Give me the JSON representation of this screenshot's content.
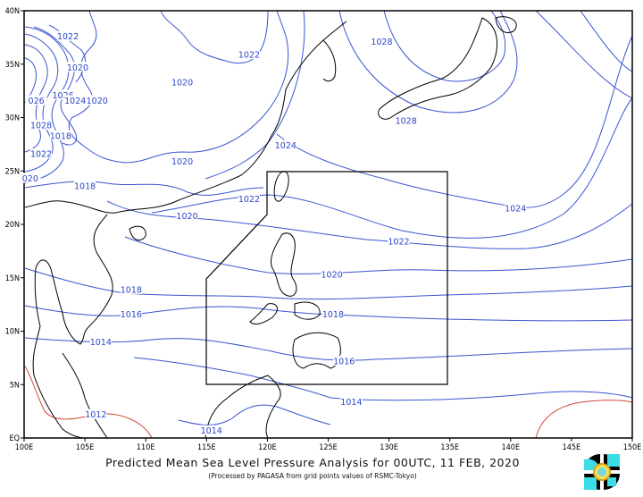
{
  "title": "Predicted Mean Sea Level Pressure Analysis for 00UTC, 11 FEB, 2020",
  "subtitle": "(Processed by PAGASA from grid points values of RSMC-Tokyo)",
  "logo": "PAGASA logo",
  "map": {
    "lon_range": [
      100,
      150
    ],
    "lat_range": [
      0,
      40
    ],
    "x_ticks": [
      "100E",
      "105E",
      "110E",
      "115E",
      "120E",
      "125E",
      "130E",
      "135E",
      "140E",
      "145E",
      "150E"
    ],
    "y_ticks": [
      "40N",
      "35N",
      "30N",
      "25N",
      "20N",
      "15N",
      "10N",
      "5N",
      "EQ"
    ],
    "contour_interval_hpa": 2,
    "colors": {
      "isobar": "#3a55d0",
      "low_isobar": "#d24a3a",
      "coastline": "#000000",
      "par_box": "#000000"
    },
    "contour_labels": [
      {
        "value": "1022",
        "lon": 103.6,
        "lat": 37.6
      },
      {
        "value": "1020",
        "lon": 104.4,
        "lat": 34.7
      },
      {
        "value": "1020",
        "lon": 113,
        "lat": 33.3
      },
      {
        "value": "1022",
        "lon": 118.5,
        "lat": 35.9
      },
      {
        "value": "1028",
        "lon": 129.4,
        "lat": 37.1
      },
      {
        "value": "1026",
        "lon": 103.2,
        "lat": 32.1
      },
      {
        "value": "1024",
        "lon": 104.2,
        "lat": 31.6
      },
      {
        "value": "1020",
        "lon": 106,
        "lat": 31.6
      },
      {
        "value": "026",
        "lon": 101,
        "lat": 31.6
      },
      {
        "value": "1028",
        "lon": 101.4,
        "lat": 29.3
      },
      {
        "value": "1018",
        "lon": 103,
        "lat": 28.3
      },
      {
        "value": "1022",
        "lon": 101.4,
        "lat": 26.6
      },
      {
        "value": "1020",
        "lon": 113,
        "lat": 25.9
      },
      {
        "value": "020",
        "lon": 100.5,
        "lat": 24.3
      },
      {
        "value": "1018",
        "lon": 105,
        "lat": 23.6
      },
      {
        "value": "1024",
        "lon": 121.5,
        "lat": 27.4
      },
      {
        "value": "1028",
        "lon": 131.4,
        "lat": 29.7
      },
      {
        "value": "1022",
        "lon": 118.5,
        "lat": 22.4
      },
      {
        "value": "1020",
        "lon": 113.4,
        "lat": 20.8
      },
      {
        "value": "1024",
        "lon": 140.4,
        "lat": 21.5
      },
      {
        "value": "1022",
        "lon": 130.8,
        "lat": 18.4
      },
      {
        "value": "1020",
        "lon": 125.3,
        "lat": 15.3
      },
      {
        "value": "1018",
        "lon": 108.8,
        "lat": 13.9
      },
      {
        "value": "1016",
        "lon": 108.8,
        "lat": 11.6
      },
      {
        "value": "1018",
        "lon": 125.4,
        "lat": 11.6
      },
      {
        "value": "1014",
        "lon": 106.3,
        "lat": 9.0
      },
      {
        "value": "1016",
        "lon": 126.3,
        "lat": 7.2
      },
      {
        "value": "1014",
        "lon": 126.9,
        "lat": 3.4
      },
      {
        "value": "1012",
        "lon": 105.9,
        "lat": 2.2
      },
      {
        "value": "1014",
        "lon": 115.4,
        "lat": 0.7
      }
    ]
  }
}
